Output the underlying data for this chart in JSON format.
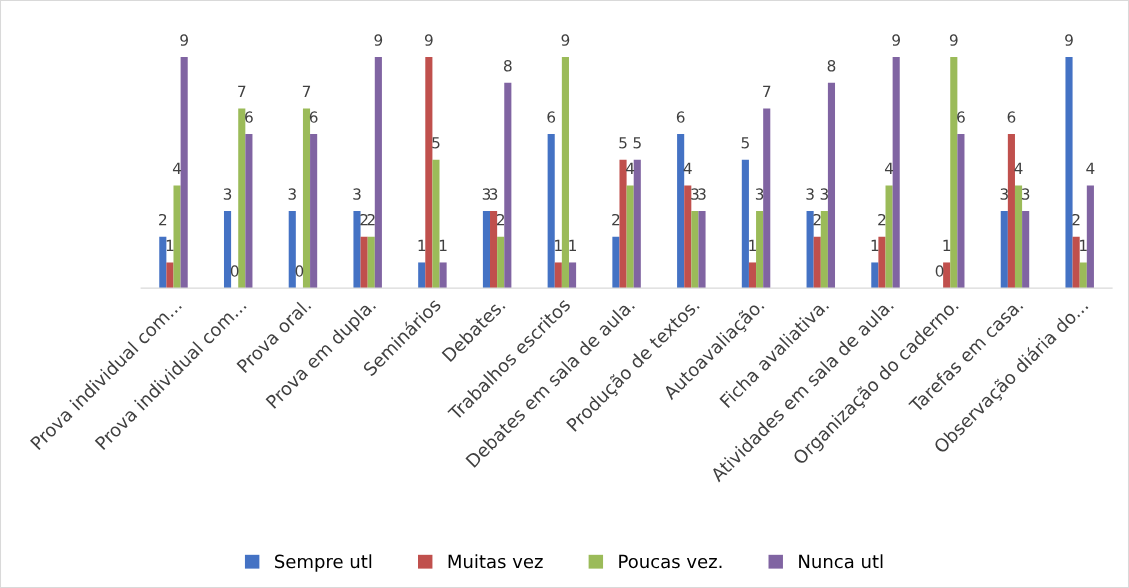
{
  "chart_data": {
    "type": "bar",
    "categories": [
      "Prova individual com...",
      "Prova individual com...",
      "Prova oral.",
      "Prova em dupla.",
      "Seminários",
      "Debates.",
      "Trabalhos escritos",
      "Debates em sala de aula.",
      "Produção de textos.",
      "Autoavaliação.",
      "Ficha avaliativa.",
      "Atividades em sala de aula.",
      "Organização do caderno.",
      "Tarefas em casa.",
      "Observação diária do..."
    ],
    "series": [
      {
        "name": "Sempre utl",
        "color": "#4472c4",
        "values": [
          2,
          3,
          3,
          3,
          1,
          3,
          6,
          2,
          6,
          5,
          3,
          1,
          0,
          3,
          9
        ]
      },
      {
        "name": "Muitas vez",
        "color": "#c0504d",
        "values": [
          1,
          0,
          0,
          2,
          9,
          3,
          1,
          5,
          4,
          1,
          2,
          2,
          1,
          6,
          2
        ]
      },
      {
        "name": "Poucas vez.",
        "color": "#9bbb59",
        "values": [
          4,
          7,
          7,
          2,
          5,
          2,
          9,
          4,
          3,
          3,
          3,
          4,
          9,
          4,
          1
        ]
      },
      {
        "name": "Nunca utl",
        "color": "#8064a2",
        "values": [
          9,
          6,
          6,
          9,
          1,
          8,
          1,
          5,
          3,
          7,
          8,
          9,
          6,
          3,
          4
        ]
      }
    ],
    "data_labels": true,
    "legend": "bottom",
    "grid": false,
    "tick_labels": "x"
  }
}
